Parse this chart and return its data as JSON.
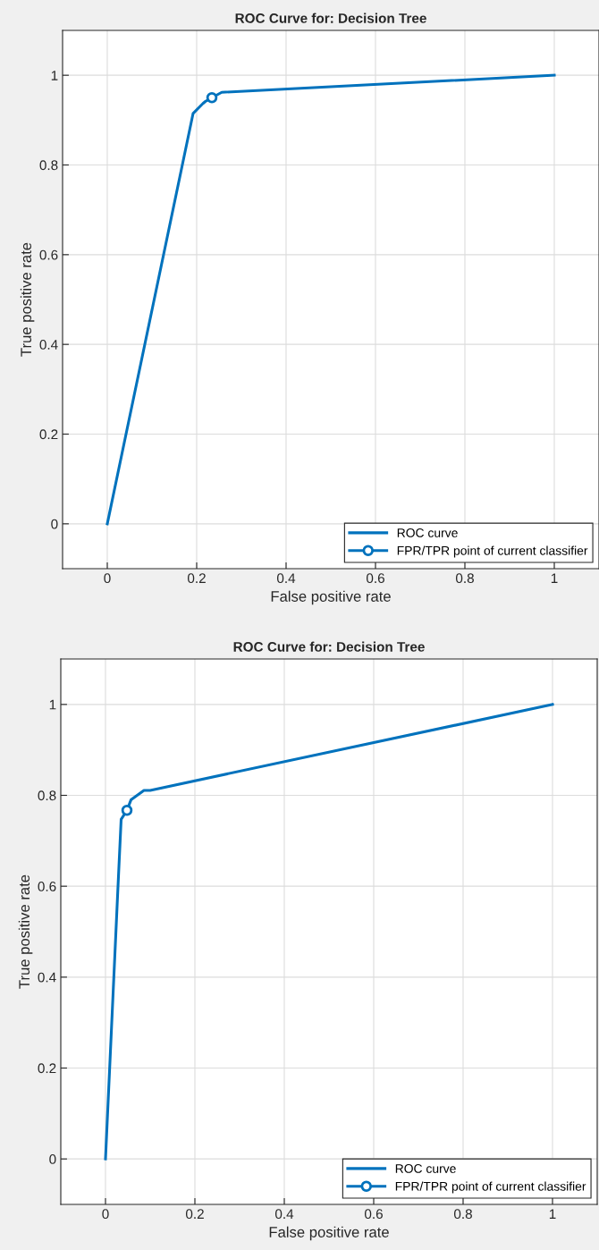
{
  "chart_data": [
    {
      "type": "line",
      "title": "ROC Curve for: Decision Tree",
      "xlabel": "False positive rate",
      "ylabel": "True positive rate",
      "xlim": [
        -0.1,
        1.1
      ],
      "ylim": [
        -0.1,
        1.1
      ],
      "xticks": [
        0,
        0.2,
        0.4,
        0.6,
        0.8,
        1
      ],
      "yticks": [
        0,
        0.2,
        0.4,
        0.6,
        0.8,
        1
      ],
      "grid": true,
      "legend": "bottom right",
      "series": [
        {
          "name": "ROC curve",
          "color": "#0072bd",
          "x": [
            0,
            0.192,
            0.214,
            0.22,
            0.234,
            0.256,
            1
          ],
          "values": [
            0,
            0.915,
            0.937,
            0.942,
            0.95,
            0.962,
            1
          ]
        },
        {
          "name": "FPR/TPR point of current classifier",
          "color": "#0072bd",
          "marker": "circle",
          "x": [
            0.234
          ],
          "values": [
            0.95
          ]
        }
      ]
    },
    {
      "type": "line",
      "title": "ROC Curve for: Decision Tree",
      "xlabel": "False positive rate",
      "ylabel": "True positive rate",
      "xlim": [
        -0.1,
        1.1
      ],
      "ylim": [
        -0.1,
        1.1
      ],
      "xticks": [
        0,
        0.2,
        0.4,
        0.6,
        0.8,
        1
      ],
      "yticks": [
        0,
        0.2,
        0.4,
        0.6,
        0.8,
        1
      ],
      "grid": true,
      "legend": "bottom right",
      "series": [
        {
          "name": "ROC curve",
          "color": "#0072bd",
          "x": [
            0,
            0.028,
            0.035,
            0.048,
            0.057,
            0.086,
            0.1,
            1
          ],
          "values": [
            0,
            0.6,
            0.747,
            0.767,
            0.79,
            0.811,
            0.811,
            1
          ]
        },
        {
          "name": "FPR/TPR point of current classifier",
          "color": "#0072bd",
          "marker": "circle",
          "x": [
            0.048
          ],
          "values": [
            0.767
          ]
        }
      ]
    }
  ]
}
